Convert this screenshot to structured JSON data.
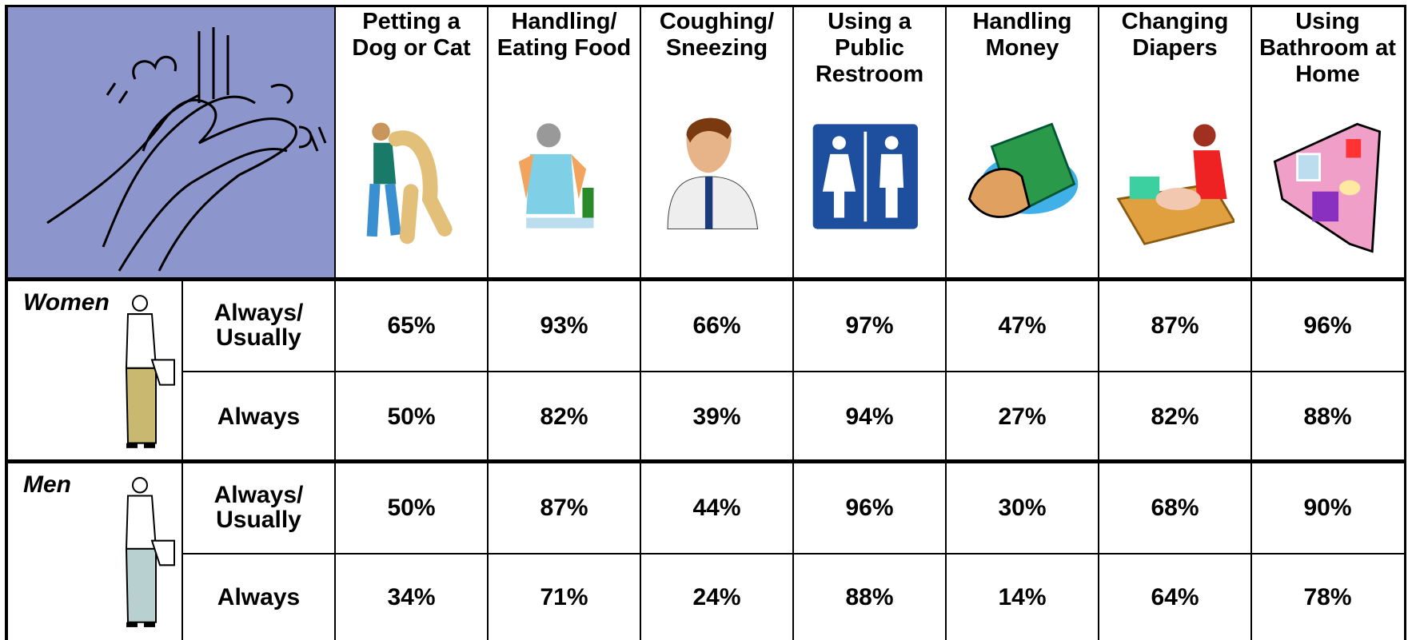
{
  "table": {
    "columns": [
      "Petting a\nDog or Cat",
      "Handling/\nEating Food",
      "Coughing/\nSneezing",
      "Using a\nPublic\nRestroom",
      "Handling\nMoney",
      "Changing\nDiapers",
      "Using\nBathroom at\nHome"
    ],
    "groups": [
      {
        "name": "Women",
        "rows": [
          {
            "label": "Always/\nUsually",
            "values": [
              "65%",
              "93%",
              "66%",
              "97%",
              "47%",
              "87%",
              "96%"
            ]
          },
          {
            "label": "Always",
            "values": [
              "50%",
              "82%",
              "39%",
              "94%",
              "27%",
              "82%",
              "88%"
            ]
          }
        ]
      },
      {
        "name": "Men",
        "rows": [
          {
            "label": "Always/\nUsually",
            "values": [
              "50%",
              "87%",
              "44%",
              "96%",
              "30%",
              "68%",
              "90%"
            ]
          },
          {
            "label": "Always",
            "values": [
              "34%",
              "71%",
              "24%",
              "88%",
              "14%",
              "64%",
              "78%"
            ]
          }
        ]
      }
    ]
  }
}
